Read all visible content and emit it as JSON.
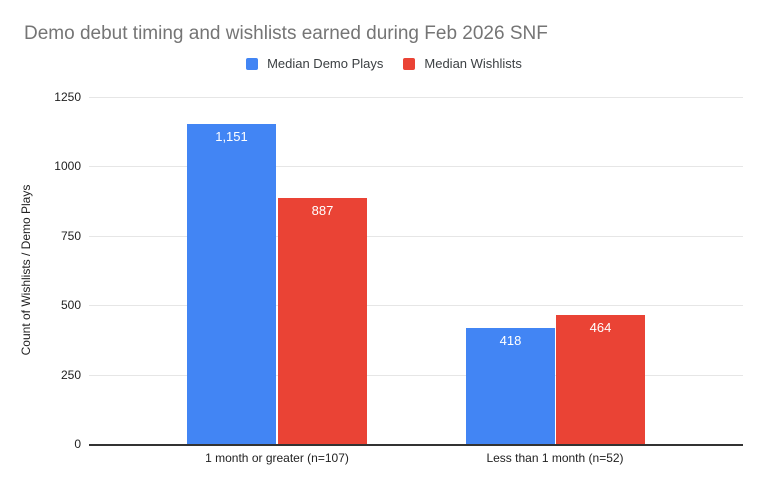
{
  "chart_data": {
    "type": "bar",
    "title": "Demo debut timing and wishlists earned during Feb 2026 SNF",
    "categories": [
      "1 month or greater (n=107)",
      "Less than 1 month (n=52)"
    ],
    "series": [
      {
        "name": "Median Demo Plays",
        "color": "#4285f4",
        "values": [
          1151,
          418
        ],
        "data_labels": [
          "1,151",
          "418"
        ]
      },
      {
        "name": "Median Wishlists",
        "color": "#ea4335",
        "values": [
          887,
          464
        ],
        "data_labels": [
          "887",
          "464"
        ]
      }
    ],
    "xlabel": "",
    "ylabel": "Count of Wishlists / Demo Plays",
    "ylim": [
      0,
      1250
    ],
    "yticks": [
      0,
      250,
      500,
      750,
      1000,
      1250
    ],
    "ytick_labels_top_to_bottom": [
      "1250",
      "1000",
      "750",
      "500",
      "250",
      "0"
    ],
    "grid": true,
    "legend_position": "top"
  },
  "colors": {
    "title_text": "#757575",
    "axis_text": "#222222",
    "legend_text": "#3c4043",
    "gridline": "#e6e6e6",
    "axis_baseline": "#333333",
    "value_label_text": "#ffffff",
    "background": "#ffffff"
  }
}
